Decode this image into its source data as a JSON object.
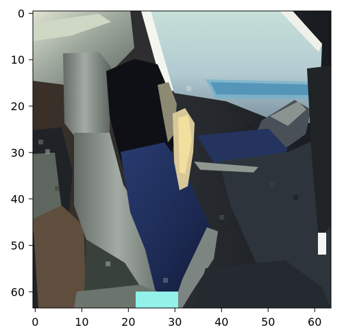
{
  "chart_data": {
    "type": "heatmap",
    "image_grid": [
      64,
      64
    ],
    "x_ticks": [
      "0",
      "10",
      "20",
      "30",
      "40",
      "50",
      "60"
    ],
    "y_ticks": [
      "0",
      "10",
      "20",
      "30",
      "40",
      "50",
      "60"
    ],
    "xlim": [
      -0.5,
      63.5
    ],
    "ylim": [
      63.5,
      -0.5
    ],
    "grid": false,
    "title": "",
    "xlabel": "",
    "ylabel": ""
  },
  "colors": {
    "scene_dark": "#1a1f23",
    "car_roof": "#b6c2b7",
    "windshield": "#b9d3d0",
    "windshield_blue": "#4d8fb5",
    "seat_gray": "#8e968f",
    "hair": "#0e1015",
    "jacket_navy": "#1e2d57",
    "skin": "#d8c899",
    "dashboard": "#2d343b",
    "console": "#6c746e",
    "cyan_patch": "#92f2ea"
  }
}
